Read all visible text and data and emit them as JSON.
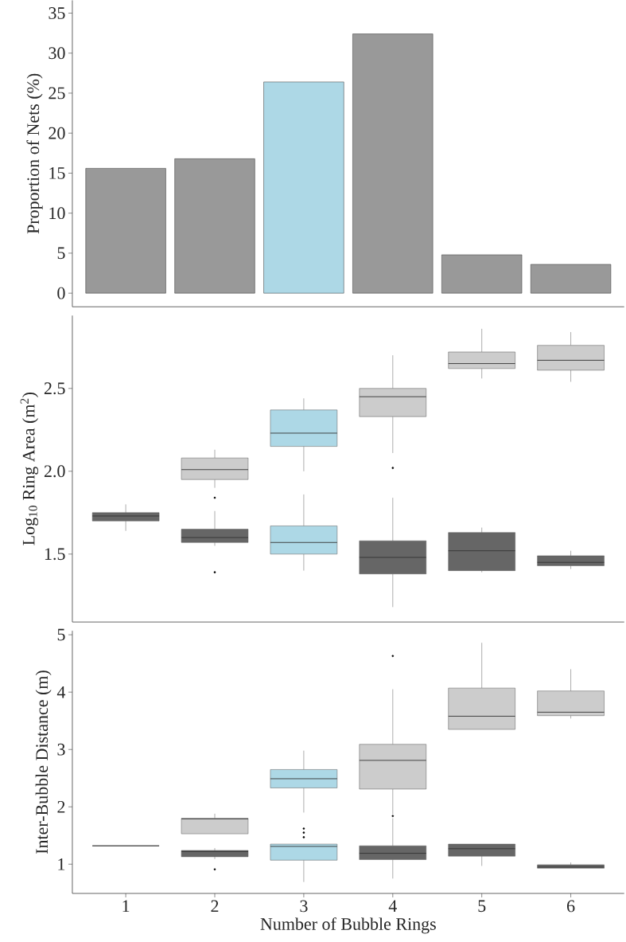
{
  "chart_data": [
    {
      "type": "bar",
      "ylabel": "Proportion of Nets (%)",
      "categories": [
        "1",
        "2",
        "3",
        "4",
        "5",
        "6"
      ],
      "values": [
        15.6,
        16.8,
        26.4,
        32.4,
        4.8,
        3.6
      ],
      "colors": [
        "#999999",
        "#999999",
        "#add8e6",
        "#999999",
        "#999999",
        "#999999"
      ],
      "ylim": [
        -1.7,
        36.6
      ],
      "yticks": [
        0,
        5,
        10,
        15,
        20,
        25,
        30,
        35
      ],
      "tick_labels": "y"
    },
    {
      "type": "box",
      "ylabel": "Log$_{10}$ Ring Area (m$^{2}$)",
      "categories": [
        "1",
        "2",
        "3",
        "4",
        "5",
        "6"
      ],
      "series": [
        {
          "colors": [
            "#cccccc",
            "#cccccc",
            "#add8e6",
            "#cccccc",
            "#cccccc",
            "#cccccc"
          ],
          "boxes": [
            null,
            {
              "low": 1.9,
              "q1": 1.95,
              "median": 2.01,
              "q3": 2.08,
              "high": 2.13,
              "outliers": [
                1.84
              ]
            },
            {
              "low": 2.0,
              "q1": 2.15,
              "median": 2.23,
              "q3": 2.37,
              "high": 2.44
            },
            {
              "low": 2.11,
              "q1": 2.33,
              "median": 2.45,
              "q3": 2.5,
              "high": 2.7,
              "outliers": [
                2.02
              ]
            },
            {
              "low": 2.56,
              "q1": 2.62,
              "median": 2.65,
              "q3": 2.72,
              "high": 2.86
            },
            {
              "low": 2.54,
              "q1": 2.61,
              "median": 2.67,
              "q3": 2.76,
              "high": 2.84
            }
          ]
        },
        {
          "colors": [
            "#666666",
            "#666666",
            "#add8e6",
            "#666666",
            "#666666",
            "#666666"
          ],
          "boxes": [
            {
              "low": 1.64,
              "q1": 1.7,
              "median": 1.73,
              "q3": 1.75,
              "high": 1.8
            },
            {
              "low": 1.55,
              "q1": 1.57,
              "median": 1.6,
              "q3": 1.65,
              "high": 1.76,
              "outliers": [
                1.39
              ]
            },
            {
              "low": 1.4,
              "q1": 1.5,
              "median": 1.57,
              "q3": 1.67,
              "high": 1.86
            },
            {
              "low": 1.18,
              "q1": 1.38,
              "median": 1.48,
              "q3": 1.58,
              "high": 1.84
            },
            {
              "low": 1.39,
              "q1": 1.4,
              "median": 1.52,
              "q3": 1.63,
              "high": 1.66
            },
            {
              "low": 1.41,
              "q1": 1.43,
              "median": 1.45,
              "q3": 1.49,
              "high": 1.52
            }
          ]
        }
      ],
      "ylim": [
        1.09,
        2.94
      ],
      "yticks": [
        1.5,
        {
          "value": 2.0,
          "label": "2.0"
        },
        2.5
      ],
      "tick_labels": "y"
    },
    {
      "type": "box",
      "ylabel": "Inter-Bubble Distance (m)",
      "xlabel": "Number of Bubble Rings",
      "categories": [
        "1",
        "2",
        "3",
        "4",
        "5",
        "6"
      ],
      "series": [
        {
          "colors": [
            "#cccccc",
            "#cccccc",
            "#add8e6",
            "#cccccc",
            "#cccccc",
            "#cccccc"
          ],
          "boxes": [
            null,
            {
              "low": 1.53,
              "q1": 1.53,
              "median": 1.79,
              "q3": 1.8,
              "high": 1.88
            },
            {
              "low": 1.9,
              "q1": 2.33,
              "median": 2.49,
              "q3": 2.65,
              "high": 2.98
            },
            {
              "low": 1.87,
              "q1": 2.31,
              "median": 2.81,
              "q3": 3.09,
              "high": 4.05,
              "outliers": [
                4.63,
                1.84
              ]
            },
            {
              "low": 3.35,
              "q1": 3.35,
              "median": 3.58,
              "q3": 4.07,
              "high": 4.86
            },
            {
              "low": 3.54,
              "q1": 3.59,
              "median": 3.65,
              "q3": 4.02,
              "high": 4.4
            }
          ]
        },
        {
          "colors": [
            "#666666",
            "#666666",
            "#add8e6",
            "#666666",
            "#666666",
            "#666666"
          ],
          "boxes": [
            {
              "low": 1.32,
              "q1": 1.32,
              "median": 1.32,
              "q3": 1.32,
              "high": 1.32
            },
            {
              "low": 1.09,
              "q1": 1.13,
              "median": 1.22,
              "q3": 1.24,
              "high": 1.28,
              "outliers": [
                0.91
              ]
            },
            {
              "low": 0.69,
              "q1": 1.07,
              "median": 1.31,
              "q3": 1.35,
              "high": 1.35,
              "outliers": [
                1.62,
                1.55,
                1.47
              ]
            },
            {
              "low": 0.75,
              "q1": 1.08,
              "median": 1.19,
              "q3": 1.32,
              "high": 1.8
            },
            {
              "low": 0.97,
              "q1": 1.14,
              "median": 1.27,
              "q3": 1.35,
              "high": 1.35
            },
            {
              "low": 0.93,
              "q1": 0.93,
              "median": 0.95,
              "q3": 0.99,
              "high": 1.03
            }
          ]
        }
      ],
      "ylim": [
        0.49,
        5.07
      ],
      "yticks": [
        1,
        2,
        3,
        4,
        5
      ]
    }
  ]
}
